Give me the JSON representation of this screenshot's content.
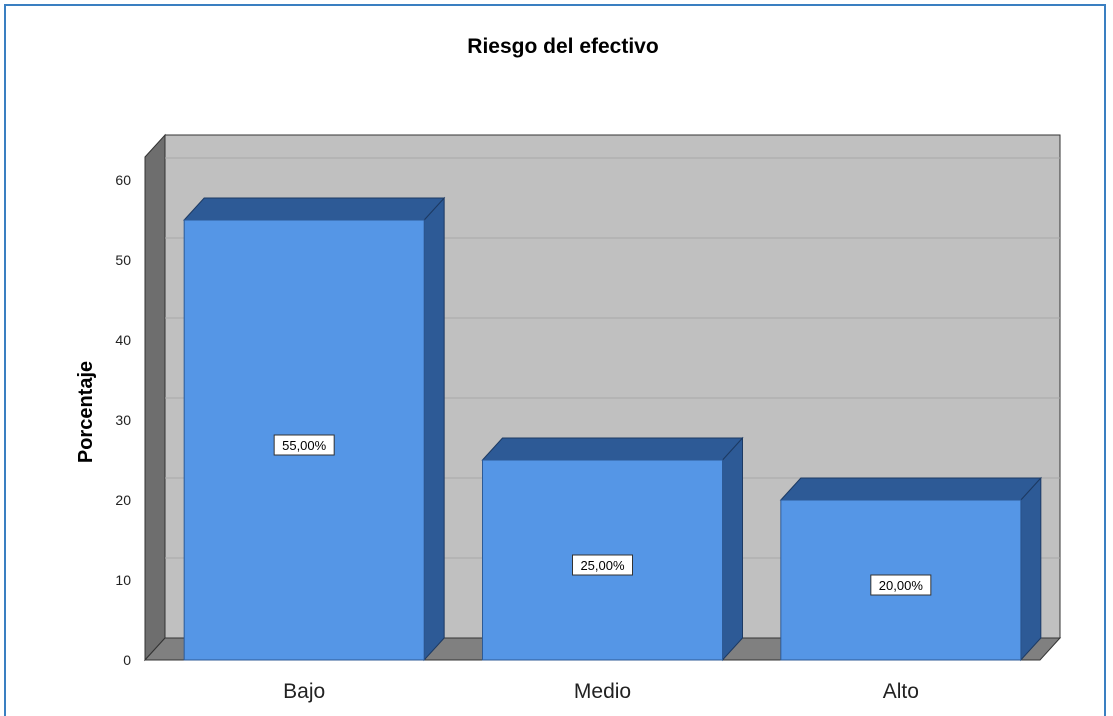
{
  "chart_data": {
    "type": "bar",
    "title": "Riesgo del efectivo",
    "xlabel": "",
    "ylabel": "Porcentaje",
    "categories": [
      "Bajo",
      "Medio",
      "Alto"
    ],
    "values": [
      55,
      25,
      20
    ],
    "data_labels": [
      "55,00%",
      "25,00%",
      "20,00%"
    ],
    "yticks": [
      "0",
      "10",
      "20",
      "30",
      "40",
      "50",
      "60"
    ],
    "ylim": [
      0,
      60
    ],
    "grid": true,
    "style": "3d",
    "colors": {
      "bar_front": "#5596e6",
      "bar_top": "#2d5a96",
      "bar_side": "#2d5a96",
      "wall": "#c0c0c0",
      "floor": "#808080",
      "frame_border": "#3a7fc1"
    }
  }
}
